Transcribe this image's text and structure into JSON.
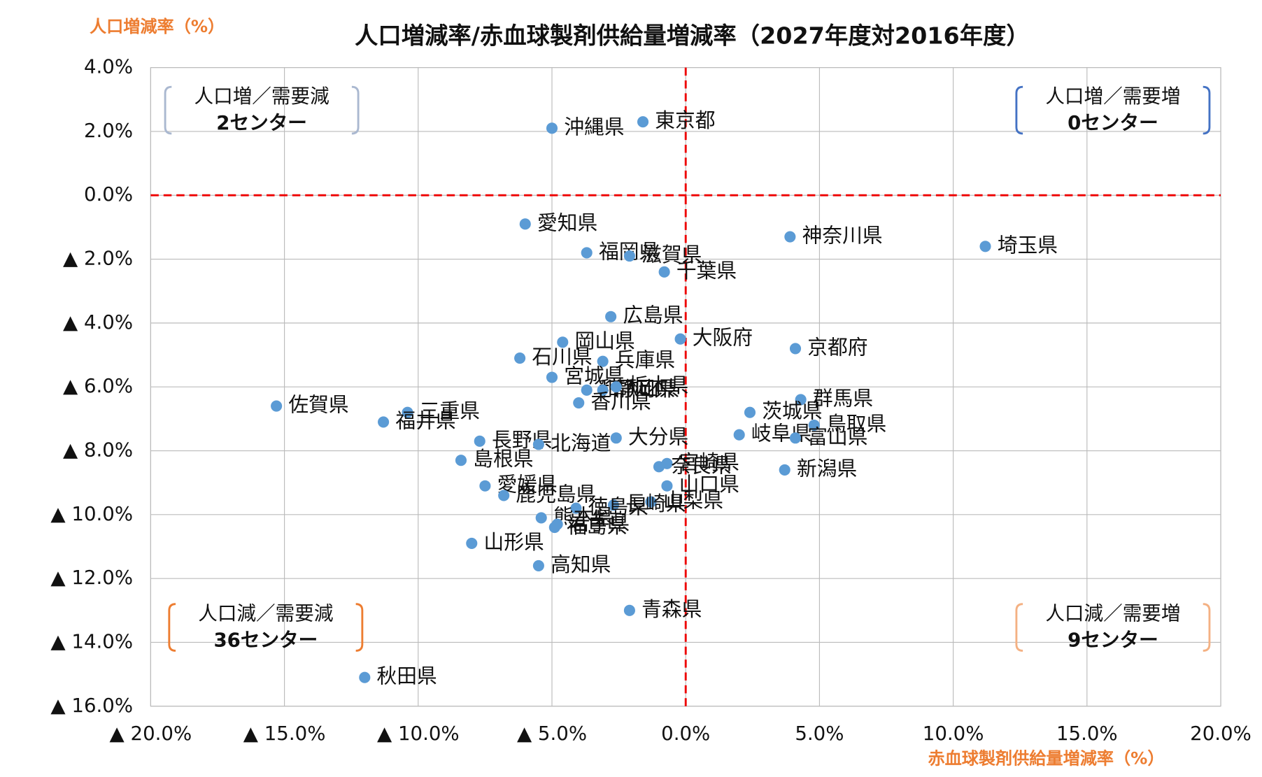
{
  "chart_data": {
    "type": "scatter",
    "title": "人口増減率/赤血球製剤供給量増減率（2027年度対2016年度）",
    "y_label": "人口増減率（%）",
    "x_label": "赤血球製剤供給量増減率（%）",
    "xlim": [
      -20,
      20
    ],
    "xticks": [
      {
        "value": -20,
        "label": "▲ 20.0%"
      },
      {
        "value": -15,
        "label": "▲ 15.0%"
      },
      {
        "value": -10,
        "label": "▲ 10.0%"
      },
      {
        "value": -5,
        "label": "▲ 5.0%"
      },
      {
        "value": 0,
        "label": "0.0%"
      },
      {
        "value": 5,
        "label": "5.0%"
      },
      {
        "value": 10,
        "label": "10.0%"
      },
      {
        "value": 15,
        "label": "15.0%"
      },
      {
        "value": 20,
        "label": "20.0%"
      }
    ],
    "ylim": [
      -16,
      4
    ],
    "yticks": [
      {
        "value": 4,
        "label": "4.0%"
      },
      {
        "value": 2,
        "label": "2.0%"
      },
      {
        "value": 0,
        "label": "0.0%"
      },
      {
        "value": -2,
        "label": "▲ 2.0%"
      },
      {
        "value": -4,
        "label": "▲ 4.0%"
      },
      {
        "value": -6,
        "label": "▲ 6.0%"
      },
      {
        "value": -8,
        "label": "▲ 8.0%"
      },
      {
        "value": -10,
        "label": "▲ 10.0%"
      },
      {
        "value": -12,
        "label": "▲ 12.0%"
      },
      {
        "value": -14,
        "label": "▲ 14.0%"
      },
      {
        "value": -16,
        "label": "▲ 16.0%"
      }
    ],
    "grid": true,
    "color": "#5b9bd5",
    "labels": [
      "沖縄県",
      "東京都",
      "愛知県",
      "神奈川県",
      "埼玉県",
      "福岡県",
      "滋賀県",
      "千葉県",
      "広島県",
      "大阪府",
      "京都府",
      "岡山県",
      "石川県",
      "兵庫県",
      "宮城県",
      "和歌山県",
      "静岡県",
      "栃木県",
      "香川県",
      "佐賀県",
      "三重県",
      "福井県",
      "群馬県",
      "茨城県",
      "鳥取県",
      "岐阜県",
      "富山県",
      "長野県",
      "北海道",
      "大分県",
      "島根県",
      "宮崎県",
      "奈良県",
      "新潟県",
      "山口県",
      "愛媛県",
      "鹿児島県",
      "山梨県",
      "長崎県",
      "徳島県",
      "熊本県",
      "岩手県",
      "福島県",
      "山形県",
      "高知県",
      "青森県",
      "秋田県"
    ],
    "x": [
      -5.0,
      -1.6,
      -6.0,
      3.9,
      11.2,
      -3.7,
      -2.1,
      -0.8,
      -2.8,
      -0.2,
      4.1,
      -4.6,
      -6.2,
      -3.1,
      -5.0,
      -3.7,
      -3.1,
      -2.6,
      -4.0,
      -15.3,
      -10.4,
      -11.3,
      4.3,
      2.4,
      4.8,
      2.0,
      4.1,
      -7.7,
      -5.5,
      -2.6,
      -8.4,
      -0.7,
      -1.0,
      3.7,
      -0.7,
      -7.5,
      -6.8,
      -1.3,
      -2.7,
      -4.1,
      -5.4,
      -4.8,
      -4.9,
      -8.0,
      -5.5,
      -2.1,
      -12.0
    ],
    "y": [
      2.1,
      2.3,
      -0.9,
      -1.3,
      -1.6,
      -1.8,
      -1.9,
      -2.4,
      -3.8,
      -4.5,
      -4.8,
      -4.6,
      -5.1,
      -5.2,
      -5.7,
      -6.1,
      -6.1,
      -6.0,
      -6.5,
      -6.6,
      -6.8,
      -7.1,
      -6.4,
      -6.8,
      -7.2,
      -7.5,
      -7.6,
      -7.7,
      -7.8,
      -7.6,
      -8.3,
      -8.4,
      -8.5,
      -8.6,
      -9.1,
      -9.1,
      -9.4,
      -9.6,
      -9.7,
      -9.8,
      -10.1,
      -10.3,
      -10.4,
      -10.9,
      -11.6,
      -13.0,
      -15.1
    ],
    "quadrants": [
      {
        "title": "人口増／需要減",
        "count": "2センター"
      },
      {
        "title": "人口増／需要増",
        "count": "0センター"
      },
      {
        "title": "人口減／需要減",
        "count": "36センター"
      },
      {
        "title": "人口減／需要増",
        "count": "9センター"
      }
    ]
  }
}
